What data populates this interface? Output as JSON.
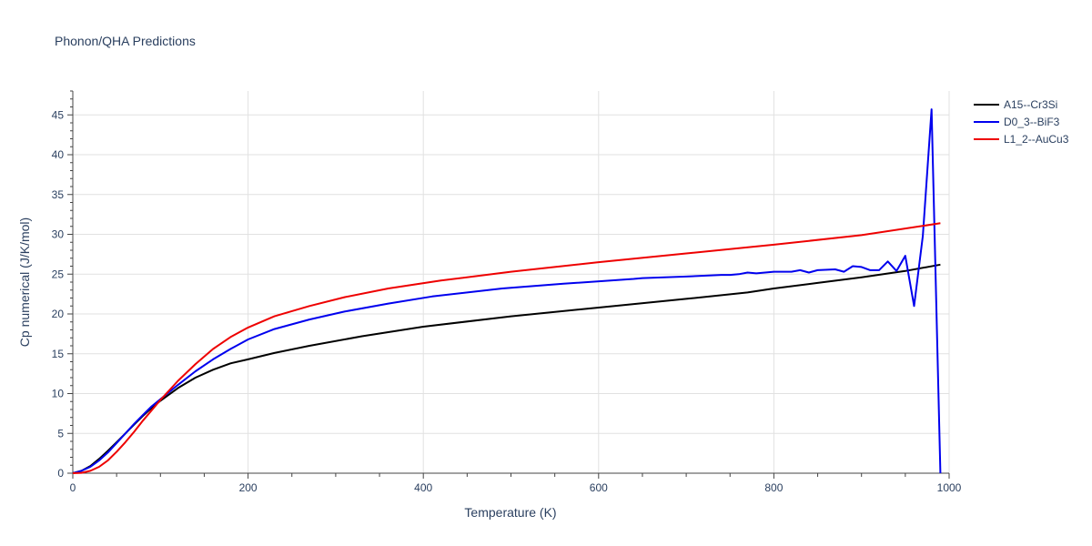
{
  "chart_data": {
    "type": "line",
    "title": "Phonon/QHA Predictions",
    "xlabel": "Temperature (K)",
    "ylabel": "Cp numerical (J/K/mol)",
    "xlim": [
      0,
      1000
    ],
    "ylim": [
      0,
      48
    ],
    "x_ticks": [
      0,
      200,
      400,
      600,
      800,
      1000
    ],
    "y_ticks": [
      0,
      5,
      10,
      15,
      20,
      25,
      30,
      35,
      40,
      45
    ],
    "grid": true,
    "legend_position": "top-right",
    "series": [
      {
        "name": "A15--Cr3Si",
        "color": "#000000",
        "x": [
          0,
          10,
          20,
          30,
          40,
          50,
          60,
          70,
          80,
          90,
          100,
          120,
          140,
          160,
          180,
          200,
          230,
          270,
          330,
          400,
          500,
          600,
          700,
          770,
          800,
          850,
          900,
          950,
          990
        ],
        "y": [
          0,
          0.3,
          0.9,
          1.8,
          2.8,
          3.9,
          5.0,
          6.1,
          7.2,
          8.2,
          9.1,
          10.7,
          12.0,
          13.0,
          13.8,
          14.3,
          15.1,
          16.0,
          17.2,
          18.4,
          19.7,
          20.8,
          21.9,
          22.7,
          23.2,
          23.9,
          24.6,
          25.4,
          26.2
        ]
      },
      {
        "name": "D0_3--BiF3",
        "color": "#0000ee",
        "x": [
          0,
          10,
          20,
          30,
          40,
          50,
          60,
          70,
          80,
          90,
          100,
          120,
          140,
          160,
          180,
          200,
          230,
          270,
          310,
          360,
          410,
          490,
          560,
          640,
          650,
          700,
          740,
          750,
          760,
          770,
          780,
          790,
          800,
          820,
          830,
          840,
          850,
          870,
          880,
          890,
          900,
          910,
          920,
          930,
          940,
          950,
          960,
          970,
          980,
          990
        ],
        "y": [
          0,
          0.3,
          0.8,
          1.6,
          2.6,
          3.8,
          5.0,
          6.2,
          7.3,
          8.4,
          9.3,
          11.1,
          12.8,
          14.3,
          15.6,
          16.8,
          18.1,
          19.3,
          20.3,
          21.3,
          22.2,
          23.2,
          23.8,
          24.4,
          24.5,
          24.7,
          24.9,
          24.9,
          25.0,
          25.2,
          25.1,
          25.2,
          25.3,
          25.3,
          25.5,
          25.2,
          25.5,
          25.6,
          25.3,
          26.0,
          25.9,
          25.5,
          25.5,
          26.6,
          25.4,
          27.3,
          21.0,
          29.8,
          45.7,
          0.0
        ]
      },
      {
        "name": "L1_2--AuCu3",
        "color": "#ee0000",
        "x": [
          0,
          10,
          20,
          30,
          40,
          50,
          60,
          70,
          80,
          90,
          100,
          120,
          140,
          160,
          180,
          200,
          230,
          270,
          310,
          360,
          420,
          500,
          600,
          700,
          800,
          900,
          990
        ],
        "y": [
          0,
          0.05,
          0.3,
          0.8,
          1.6,
          2.7,
          3.9,
          5.2,
          6.6,
          7.9,
          9.2,
          11.6,
          13.7,
          15.6,
          17.1,
          18.3,
          19.7,
          21.0,
          22.1,
          23.2,
          24.2,
          25.3,
          26.5,
          27.6,
          28.7,
          29.9,
          31.4
        ]
      }
    ]
  }
}
